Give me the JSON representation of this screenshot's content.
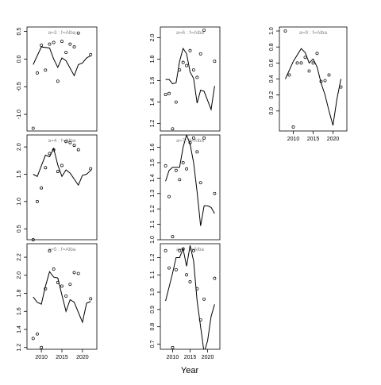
{
  "chart_data": {
    "type": "scatter",
    "layout": {
      "rows": 3,
      "cols": 3
    },
    "xlabel": "Year",
    "x_ticks": [
      2010,
      2015,
      2020
    ],
    "xlim": [
      2006.5,
      2023.5
    ],
    "panels": [
      {
        "id": "a3",
        "title": "a=3 : f=Alba",
        "ylim": [
          -1.3,
          0.58
        ],
        "y_ticks": [
          -1.0,
          -0.5,
          0.0,
          0.5
        ],
        "y_tick_labels": [
          "-1.0",
          "-0.5",
          "0.0",
          "0.5"
        ],
        "show_x_axis": false,
        "points": [
          [
            2008,
            -1.25
          ],
          [
            2009,
            -0.25
          ],
          [
            2010,
            0.25
          ],
          [
            2011,
            -0.2
          ],
          [
            2012,
            0.27
          ],
          [
            2013,
            0.3
          ],
          [
            2014,
            -0.4
          ],
          [
            2015,
            0.32
          ],
          [
            2016,
            0.12
          ],
          [
            2017,
            0.27
          ],
          [
            2018,
            0.22
          ],
          [
            2019,
            0.47
          ],
          [
            2022,
            0.08
          ]
        ],
        "line": [
          [
            2008,
            -0.1
          ],
          [
            2010,
            0.22
          ],
          [
            2012,
            0.2
          ],
          [
            2013,
            0.0
          ],
          [
            2014,
            -0.15
          ],
          [
            2015,
            0.02
          ],
          [
            2016,
            -0.03
          ],
          [
            2018,
            -0.3
          ],
          [
            2019,
            -0.1
          ],
          [
            2020,
            -0.07
          ],
          [
            2021,
            0.02
          ],
          [
            2022,
            0.06
          ]
        ]
      },
      {
        "id": "a4",
        "title": "a=4 : f=Alba",
        "ylim": [
          0.3,
          2.22
        ],
        "y_ticks": [
          0.5,
          1.0,
          1.5,
          2.0
        ],
        "y_tick_labels": [
          "0.5",
          "1.0",
          "1.5",
          "2.0"
        ],
        "show_x_axis": false,
        "points": [
          [
            2008,
            0.3
          ],
          [
            2009,
            1.0
          ],
          [
            2010,
            1.25
          ],
          [
            2011,
            1.62
          ],
          [
            2012,
            1.88
          ],
          [
            2013,
            1.95
          ],
          [
            2014,
            1.55
          ],
          [
            2015,
            1.66
          ],
          [
            2016,
            2.1
          ],
          [
            2017,
            2.08
          ],
          [
            2018,
            2.03
          ],
          [
            2019,
            1.95
          ],
          [
            2022,
            1.6
          ]
        ],
        "line": [
          [
            2008,
            1.5
          ],
          [
            2009,
            1.46
          ],
          [
            2011,
            1.85
          ],
          [
            2012,
            1.82
          ],
          [
            2013,
            1.97
          ],
          [
            2014,
            1.67
          ],
          [
            2015,
            1.46
          ],
          [
            2016,
            1.58
          ],
          [
            2017,
            1.52
          ],
          [
            2019,
            1.3
          ],
          [
            2020,
            1.48
          ],
          [
            2021,
            1.5
          ],
          [
            2022,
            1.57
          ]
        ]
      },
      {
        "id": "a5",
        "title": "a=5 : f=Alba",
        "ylim": [
          1.18,
          2.35
        ],
        "y_ticks": [
          1.2,
          1.4,
          1.6,
          1.8,
          2.0,
          2.2
        ],
        "y_tick_labels": [
          "1.2",
          "1.4",
          "1.6",
          "1.8",
          "2.0",
          "2.2"
        ],
        "show_x_axis": true,
        "points": [
          [
            2008,
            1.3
          ],
          [
            2009,
            1.35
          ],
          [
            2010,
            1.2
          ],
          [
            2011,
            1.85
          ],
          [
            2012,
            2.27
          ],
          [
            2013,
            2.07
          ],
          [
            2014,
            1.92
          ],
          [
            2015,
            1.88
          ],
          [
            2016,
            1.77
          ],
          [
            2017,
            1.9
          ],
          [
            2018,
            2.03
          ],
          [
            2019,
            2.02
          ],
          [
            2022,
            1.74
          ]
        ],
        "line": [
          [
            2008,
            1.76
          ],
          [
            2009,
            1.7
          ],
          [
            2010,
            1.68
          ],
          [
            2011,
            1.88
          ],
          [
            2012,
            2.04
          ],
          [
            2013,
            1.98
          ],
          [
            2014,
            1.97
          ],
          [
            2015,
            1.78
          ],
          [
            2016,
            1.6
          ],
          [
            2017,
            1.73
          ],
          [
            2018,
            1.7
          ],
          [
            2020,
            1.48
          ],
          [
            2021,
            1.69
          ],
          [
            2022,
            1.71
          ]
        ]
      },
      {
        "id": "a6",
        "title": "a=6 : f=Alba",
        "ylim": [
          1.13,
          2.1
        ],
        "y_ticks": [
          1.2,
          1.4,
          1.6,
          1.8,
          2.0
        ],
        "y_tick_labels": [
          "1.2",
          "1.4",
          "1.6",
          "1.8",
          "2.0"
        ],
        "show_x_axis": false,
        "points": [
          [
            2008,
            1.47
          ],
          [
            2009,
            1.48
          ],
          [
            2010,
            1.15
          ],
          [
            2011,
            1.4
          ],
          [
            2012,
            1.7
          ],
          [
            2013,
            1.77
          ],
          [
            2014,
            1.74
          ],
          [
            2015,
            1.88
          ],
          [
            2016,
            1.7
          ],
          [
            2017,
            1.63
          ],
          [
            2018,
            1.85
          ],
          [
            2019,
            2.07
          ],
          [
            2022,
            1.78
          ]
        ],
        "line": [
          [
            2008,
            1.61
          ],
          [
            2009,
            1.61
          ],
          [
            2010,
            1.57
          ],
          [
            2011,
            1.58
          ],
          [
            2012,
            1.78
          ],
          [
            2013,
            1.9
          ],
          [
            2014,
            1.85
          ],
          [
            2015,
            1.68
          ],
          [
            2016,
            1.62
          ],
          [
            2017,
            1.39
          ],
          [
            2018,
            1.51
          ],
          [
            2019,
            1.5
          ],
          [
            2021,
            1.33
          ],
          [
            2022,
            1.55
          ]
        ]
      },
      {
        "id": "a7",
        "title": "a=7 : f=Alba",
        "ylim": [
          1.0,
          1.68
        ],
        "y_ticks": [
          1.0,
          1.1,
          1.2,
          1.3,
          1.4,
          1.5,
          1.6
        ],
        "y_tick_labels": [
          "1.0",
          "1.1",
          "1.2",
          "1.3",
          "1.4",
          "1.5",
          "1.6"
        ],
        "show_x_axis": false,
        "points": [
          [
            2008,
            1.48
          ],
          [
            2009,
            1.28
          ],
          [
            2010,
            1.02
          ],
          [
            2011,
            1.45
          ],
          [
            2012,
            1.39
          ],
          [
            2013,
            1.5
          ],
          [
            2014,
            1.46
          ],
          [
            2015,
            1.63
          ],
          [
            2016,
            1.66
          ],
          [
            2017,
            1.57
          ],
          [
            2018,
            1.37
          ],
          [
            2019,
            1.66
          ],
          [
            2022,
            1.3
          ]
        ],
        "line": [
          [
            2008,
            1.38
          ],
          [
            2009,
            1.45
          ],
          [
            2010,
            1.47
          ],
          [
            2012,
            1.47
          ],
          [
            2013,
            1.6
          ],
          [
            2014,
            1.68
          ],
          [
            2015,
            1.62
          ],
          [
            2016,
            1.5
          ],
          [
            2017,
            1.31
          ],
          [
            2018,
            1.09
          ],
          [
            2019,
            1.22
          ],
          [
            2020,
            1.22
          ],
          [
            2021,
            1.21
          ],
          [
            2022,
            1.17
          ]
        ]
      },
      {
        "id": "a8",
        "title": "a=8 : f=Alba",
        "ylim": [
          0.67,
          1.28
        ],
        "y_ticks": [
          0.7,
          0.8,
          0.9,
          1.0,
          1.1,
          1.2
        ],
        "y_tick_labels": [
          "0.7",
          "0.8",
          "0.9",
          "1.0",
          "1.1",
          "1.2"
        ],
        "show_x_axis": true,
        "points": [
          [
            2008,
            1.24
          ],
          [
            2009,
            1.14
          ],
          [
            2010,
            0.68
          ],
          [
            2011,
            1.13
          ],
          [
            2012,
            1.24
          ],
          [
            2013,
            1.25
          ],
          [
            2014,
            1.1
          ],
          [
            2015,
            1.06
          ],
          [
            2016,
            1.24
          ],
          [
            2017,
            1.02
          ],
          [
            2018,
            0.84
          ],
          [
            2019,
            0.96
          ],
          [
            2022,
            1.08
          ]
        ],
        "line": [
          [
            2008,
            0.95
          ],
          [
            2010,
            1.11
          ],
          [
            2011,
            1.2
          ],
          [
            2012,
            1.2
          ],
          [
            2013,
            1.25
          ],
          [
            2014,
            1.15
          ],
          [
            2015,
            1.27
          ],
          [
            2016,
            1.18
          ],
          [
            2017,
            0.95
          ],
          [
            2018,
            0.8
          ],
          [
            2019,
            0.65
          ],
          [
            2020,
            0.72
          ],
          [
            2021,
            0.86
          ],
          [
            2022,
            0.93
          ]
        ]
      },
      {
        "id": "a9",
        "title": "a=9 : f=Alba",
        "ylim": [
          -0.25,
          1.05
        ],
        "y_ticks": [
          0.0,
          0.2,
          0.4,
          0.6,
          0.8,
          1.0
        ],
        "y_tick_labels": [
          "0.0",
          "0.2",
          "0.4",
          "0.6",
          "0.8",
          "1.0"
        ],
        "show_x_axis": true,
        "points": [
          [
            2008,
            1.0
          ],
          [
            2009,
            0.45
          ],
          [
            2010,
            -0.2
          ],
          [
            2011,
            0.6
          ],
          [
            2012,
            0.6
          ],
          [
            2013,
            0.67
          ],
          [
            2014,
            0.5
          ],
          [
            2015,
            0.6
          ],
          [
            2016,
            0.72
          ],
          [
            2017,
            0.37
          ],
          [
            2018,
            0.38
          ],
          [
            2019,
            0.45
          ],
          [
            2022,
            0.3
          ]
        ],
        "line": [
          [
            2008,
            0.4
          ],
          [
            2010,
            0.62
          ],
          [
            2012,
            0.78
          ],
          [
            2013,
            0.73
          ],
          [
            2014,
            0.6
          ],
          [
            2015,
            0.65
          ],
          [
            2016,
            0.55
          ],
          [
            2017,
            0.35
          ],
          [
            2018,
            0.2
          ],
          [
            2019,
            0.0
          ],
          [
            2020,
            -0.18
          ],
          [
            2021,
            0.15
          ],
          [
            2022,
            0.4
          ]
        ]
      }
    ]
  }
}
